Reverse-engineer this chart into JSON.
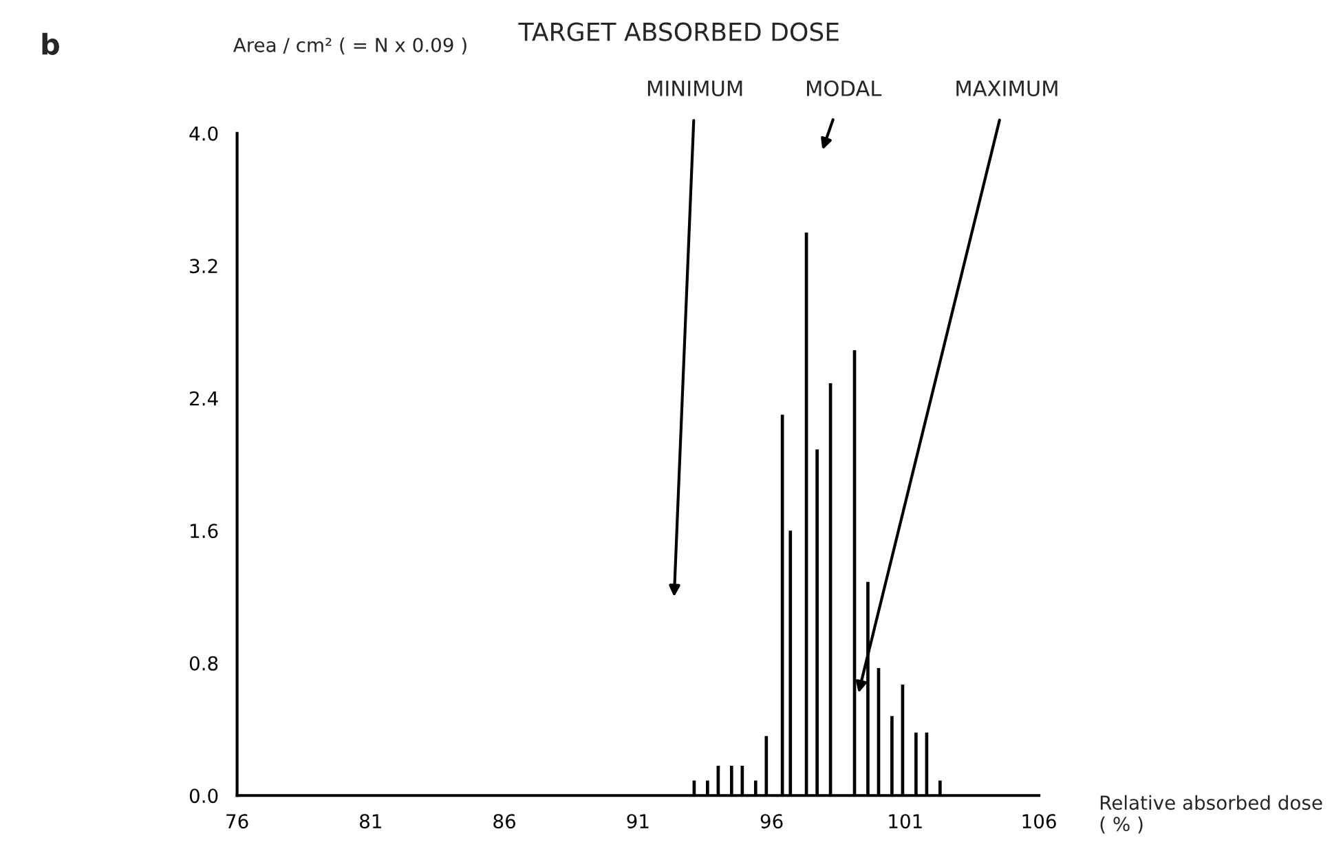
{
  "chart_data": {
    "type": "bar",
    "title": "TARGET ABSORBED DOSE",
    "ylabel": "Area / cm² ( = N x 0.09 )",
    "xlabel": "Relative absorbed dose ( % )",
    "annotations": [
      "b",
      "MINIMUM",
      "MODAL",
      "MAXIMUM"
    ],
    "x": [
      93.1,
      93.6,
      94.0,
      94.5,
      94.9,
      95.4,
      95.8,
      96.4,
      96.7,
      97.3,
      97.7,
      98.2,
      98.7,
      99.1,
      99.6,
      100.0,
      100.5,
      100.9,
      101.4,
      101.8,
      102.3
    ],
    "series": [
      {
        "color": "#000000",
        "values": [
          0.09,
          0.09,
          0.18,
          0.18,
          0.18,
          0.09,
          0.36,
          2.3,
          1.6,
          3.4,
          2.09,
          2.49,
          null,
          2.69,
          1.29,
          0.77,
          0.48,
          0.67,
          0.38,
          0.38,
          0.09
        ]
      }
    ],
    "xlim": [
      76,
      106
    ],
    "xticks": [
      76,
      81,
      86,
      91,
      96,
      101,
      106
    ],
    "ylim": [
      0,
      4.0
    ],
    "yticks": [
      {
        "value": 0,
        "label": "0.0"
      },
      {
        "value": 0.8,
        "label": "0.8"
      },
      {
        "value": 1.6,
        "label": "1.6"
      },
      {
        "value": 2.4,
        "label": "2.4"
      },
      {
        "value": 3.2,
        "label": "3.2"
      },
      {
        "value": 4.0,
        "label": "4.0"
      }
    ],
    "grid": false,
    "legend": false
  }
}
